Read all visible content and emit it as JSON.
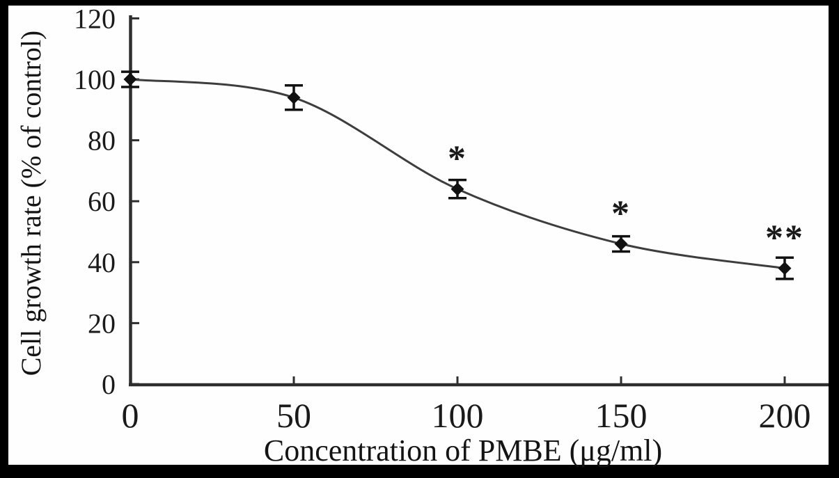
{
  "figure": {
    "border_color": "#000000",
    "background": "#fefefe",
    "axis_color": "#2e2e2e",
    "text_color": "#1a1a1a"
  },
  "chart_data": {
    "type": "line",
    "title": "",
    "xlabel": "Concentration of PMBE (μg/ml)",
    "ylabel": "Cell growth rate (% of control)",
    "x": [
      0,
      50,
      100,
      150,
      200
    ],
    "y": [
      100,
      94,
      64,
      46,
      38
    ],
    "y_err": [
      2.5,
      4,
      3,
      2.5,
      3.5
    ],
    "significance": [
      "",
      "",
      "*",
      "*",
      "**"
    ],
    "x_ticks": [
      0,
      50,
      100,
      150,
      200
    ],
    "y_ticks": [
      0,
      20,
      40,
      60,
      80,
      100,
      120
    ],
    "xlim": [
      0,
      213
    ],
    "ylim": [
      0,
      120
    ],
    "grid": false,
    "legend": null,
    "marker": "diamond",
    "line_color": "#3d3d3d",
    "marker_color": "#111111",
    "error_bar_color": "#111111"
  }
}
